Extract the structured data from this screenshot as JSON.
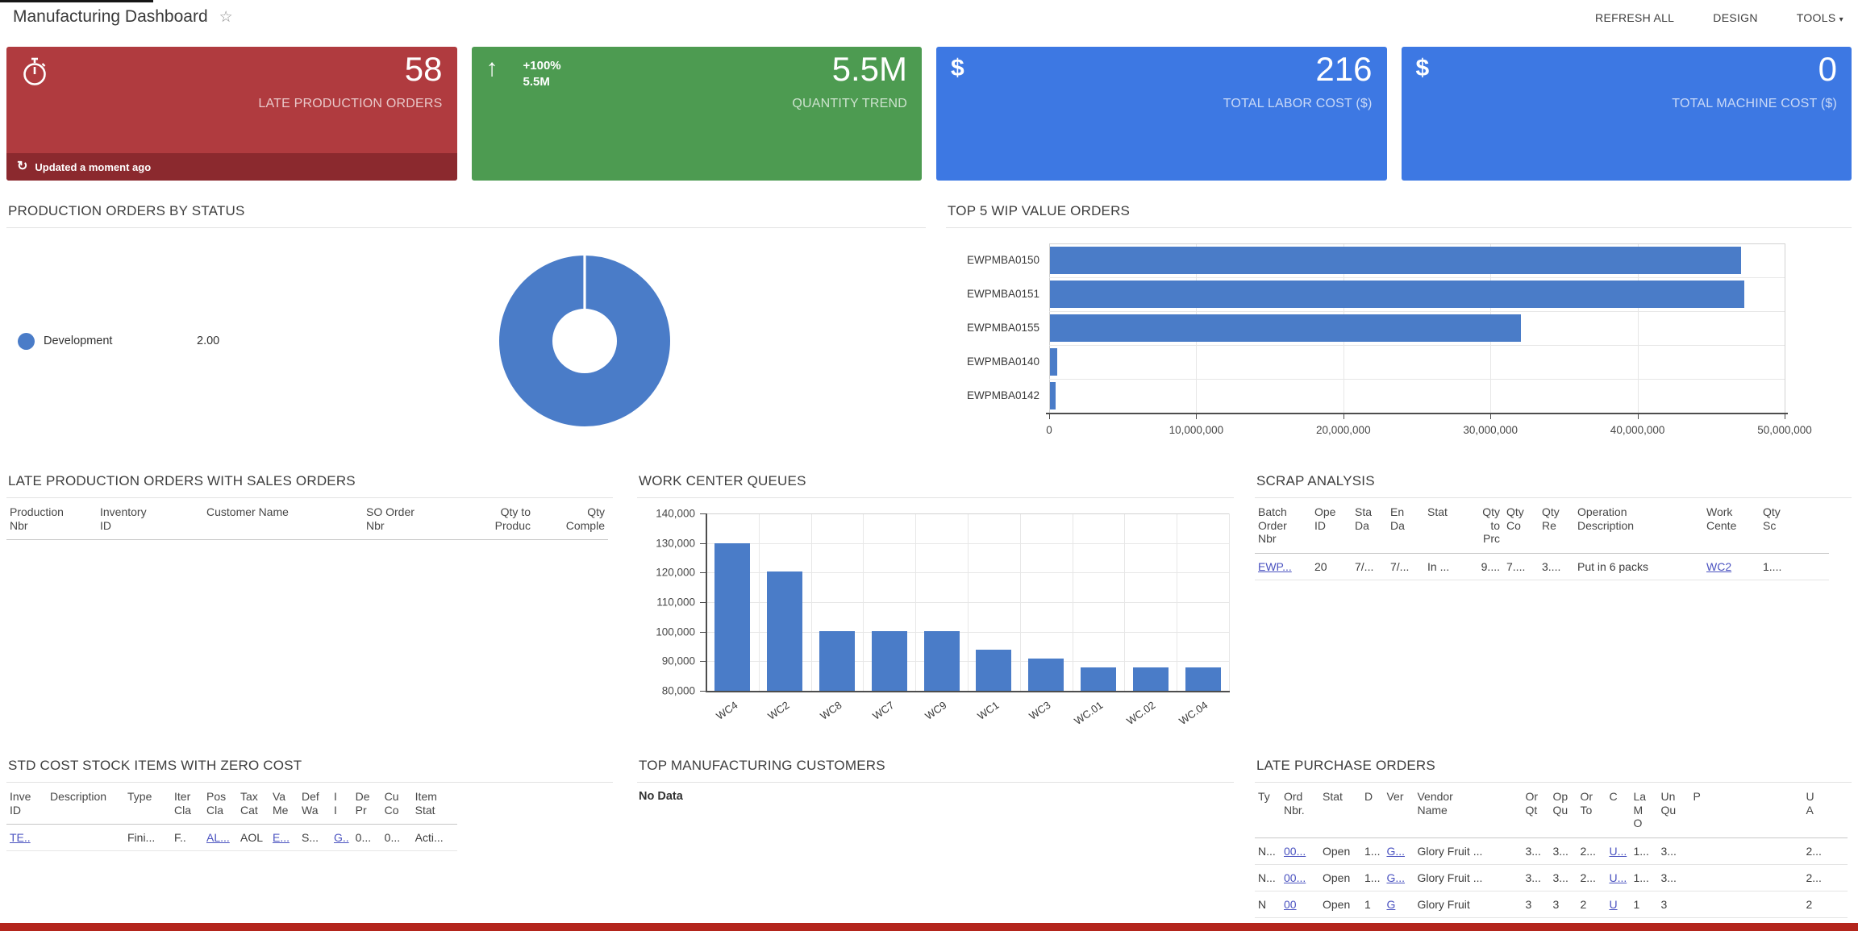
{
  "header": {
    "title": "Manufacturing Dashboard",
    "actions": [
      {
        "label": "REFRESH ALL"
      },
      {
        "label": "DESIGN"
      },
      {
        "label": "TOOLS"
      }
    ]
  },
  "kpi_cards": [
    {
      "icon": "stopwatch-icon",
      "value": "58",
      "label": "LATE PRODUCTION ORDERS",
      "footer": "Updated a moment ago"
    },
    {
      "icon": "arrow-up-icon",
      "trend_pct": "+100%",
      "trend_value": "5.5M",
      "value": "5.5M",
      "label": "QUANTITY TREND"
    },
    {
      "icon": "dollar-icon",
      "value": "216",
      "label": "TOTAL LABOR COST ($)"
    },
    {
      "icon": "dollar-icon",
      "value": "0",
      "label": "TOTAL MACHINE COST ($)"
    }
  ],
  "panels": {
    "status": {
      "title": "PRODUCTION ORDERS BY STATUS"
    },
    "wip": {
      "title": "TOP 5 WIP VALUE ORDERS"
    },
    "late_prod": {
      "title": "LATE PRODUCTION ORDERS WITH SALES ORDERS"
    },
    "wcq": {
      "title": "WORK CENTER QUEUES"
    },
    "scrap": {
      "title": "SCRAP ANALYSIS"
    },
    "std_cost": {
      "title": "STD COST STOCK ITEMS WITH ZERO COST"
    },
    "top_customers": {
      "title": "TOP MANUFACTURING CUSTOMERS",
      "empty_text": "No Data"
    },
    "late_po": {
      "title": "LATE PURCHASE ORDERS"
    }
  },
  "chart_data": [
    {
      "id": "production-orders-by-status",
      "type": "pie",
      "donut": true,
      "title": "PRODUCTION ORDERS BY STATUS",
      "labels": [
        "Development"
      ],
      "values": [
        2.0
      ],
      "value_labels": [
        "2.00"
      ],
      "colors": [
        "#4a7cc8"
      ],
      "legend_position": "left"
    },
    {
      "id": "top-5-wip-value-orders",
      "type": "bar",
      "orientation": "horizontal",
      "title": "TOP 5 WIP VALUE ORDERS",
      "categories": [
        "EWPMBA0150",
        "EWPMBA0151",
        "EWPMBA0155",
        "EWPMBA0140",
        "EWPMBA0142"
      ],
      "values": [
        47000000,
        47200000,
        32000000,
        500000,
        400000
      ],
      "xlim": [
        0,
        50000000
      ],
      "xtick_labels": [
        "0",
        "10,000,000",
        "20,000,000",
        "30,000,000",
        "40,000,000",
        "50,000,000"
      ],
      "bar_color": "#4a7cc8",
      "grid": true
    },
    {
      "id": "work-center-queues",
      "type": "bar",
      "orientation": "vertical",
      "title": "WORK CENTER QUEUES",
      "categories": [
        "WC4",
        "WC2",
        "WC8",
        "WC7",
        "WC9",
        "WC1",
        "WC3",
        "WC.01",
        "WC.02",
        "WC.04"
      ],
      "values": [
        130000,
        120500,
        100300,
        100300,
        100300,
        94000,
        91000,
        88000,
        88000,
        88000
      ],
      "ylim": [
        80000,
        140000
      ],
      "ytick_labels": [
        "140,000",
        "130,000",
        "120,000",
        "110,000",
        "100,000",
        "90,000",
        "80,000"
      ],
      "bar_color": "#4a7cc8",
      "grid": true
    }
  ],
  "tables": {
    "late_prod": {
      "columns": [
        {
          "label": "Production\nNbr",
          "width": 112
        },
        {
          "label": "Inventory\nID",
          "width": 132
        },
        {
          "label": "Customer Name",
          "width": 198
        },
        {
          "label": "SO Order\nNbr",
          "width": 112
        },
        {
          "label": "Qty to\nProduc",
          "width": 100,
          "align": "right"
        },
        {
          "label": "Qty\nComple",
          "width": 92,
          "align": "right"
        }
      ],
      "rows": []
    },
    "scrap": {
      "columns": [
        {
          "label": "Batch\nOrder\nNbr",
          "width": 70
        },
        {
          "label": "Ope\nID",
          "width": 50
        },
        {
          "label": "Sta\nDa",
          "width": 44
        },
        {
          "label": "En\nDa",
          "width": 46
        },
        {
          "label": "Stat",
          "width": 62
        },
        {
          "label": "Qty\nto\nPrc",
          "width": 36,
          "align": "right"
        },
        {
          "label": "Qty\nCo",
          "width": 44
        },
        {
          "label": "Qty\nRe",
          "width": 44
        },
        {
          "label": "Operation\nDescription",
          "width": 160
        },
        {
          "label": "Work\nCente",
          "width": 70
        },
        {
          "label": "Qty\nSc",
          "width": 86
        }
      ],
      "rows": [
        [
          {
            "text": "EWP...",
            "link": true
          },
          "20",
          "7/...",
          "7/...",
          "In ...",
          "9....",
          "7....",
          "3....",
          "Put in 6 packs",
          {
            "text": "WC2",
            "link": true
          },
          "1...."
        ]
      ]
    },
    "std_cost": {
      "columns": [
        {
          "label": "Inve\nID",
          "width": 50
        },
        {
          "label": "Description",
          "width": 96
        },
        {
          "label": "Type",
          "width": 58
        },
        {
          "label": "Iter\nCla",
          "width": 40
        },
        {
          "label": "Pos\nCla",
          "width": 42
        },
        {
          "label": "Tax\nCat",
          "width": 40
        },
        {
          "label": "Va\nMe",
          "width": 36
        },
        {
          "label": "Def\nWa",
          "width": 40
        },
        {
          "label": "I\nI",
          "width": 26
        },
        {
          "label": "De\nPr",
          "width": 36
        },
        {
          "label": "Cu\nCo",
          "width": 38
        },
        {
          "label": "Item\nStat",
          "width": 56
        }
      ],
      "rows": [
        [
          {
            "text": "TE..",
            "link": true
          },
          "",
          "Fini...",
          "F..",
          {
            "text": "AL...",
            "link": true
          },
          "AOL",
          {
            "text": "E...",
            "link": true
          },
          "S...",
          {
            "text": "G..",
            "link": true
          },
          "0...",
          "0...",
          "Acti..."
        ]
      ]
    },
    "late_po": {
      "columns": [
        {
          "label": "Ty",
          "width": 32
        },
        {
          "label": "Ord\nNbr.",
          "width": 48
        },
        {
          "label": "Stat",
          "width": 52
        },
        {
          "label": "D",
          "width": 26
        },
        {
          "label": "Ver",
          "width": 38
        },
        {
          "label": "Vendor\nName",
          "width": 134
        },
        {
          "label": "Or\nQt",
          "width": 34
        },
        {
          "label": "Op\nQu",
          "width": 34
        },
        {
          "label": "Or\nTo",
          "width": 36
        },
        {
          "label": "C",
          "width": 30
        },
        {
          "label": "La\nM\nO",
          "width": 34
        },
        {
          "label": "Un\nQu",
          "width": 40
        },
        {
          "label": "P",
          "width": 140
        },
        {
          "label": "U\nA",
          "width": 56
        }
      ],
      "rows": [
        [
          "N...",
          {
            "text": "00...",
            "link": true
          },
          "Open",
          "1...",
          {
            "text": "G...",
            "link": true
          },
          "Glory Fruit ...",
          "3...",
          "3...",
          "2...",
          {
            "text": "U...",
            "link": true
          },
          "1...",
          "3...",
          "",
          "2..."
        ],
        [
          "N...",
          {
            "text": "00...",
            "link": true
          },
          "Open",
          "1...",
          {
            "text": "G...",
            "link": true
          },
          "Glory Fruit ...",
          "3...",
          "3...",
          "2...",
          {
            "text": "U...",
            "link": true
          },
          "1...",
          "3...",
          "",
          "2..."
        ],
        [
          "N",
          {
            "text": "00",
            "link": true
          },
          "Open",
          "1",
          {
            "text": "G",
            "link": true
          },
          "Glory Fruit",
          "3",
          "3",
          "2",
          {
            "text": "U",
            "link": true
          },
          "1",
          "3",
          "",
          "2"
        ]
      ]
    }
  },
  "colors": {
    "kpi_red": "#b03b3f",
    "kpi_red_footer": "#8b292e",
    "kpi_green": "#4d9b51",
    "kpi_blue": "#3d78e3",
    "chart_blue": "#4a7cc8",
    "link": "#4a52c0",
    "alert_strip": "#b3251c"
  }
}
